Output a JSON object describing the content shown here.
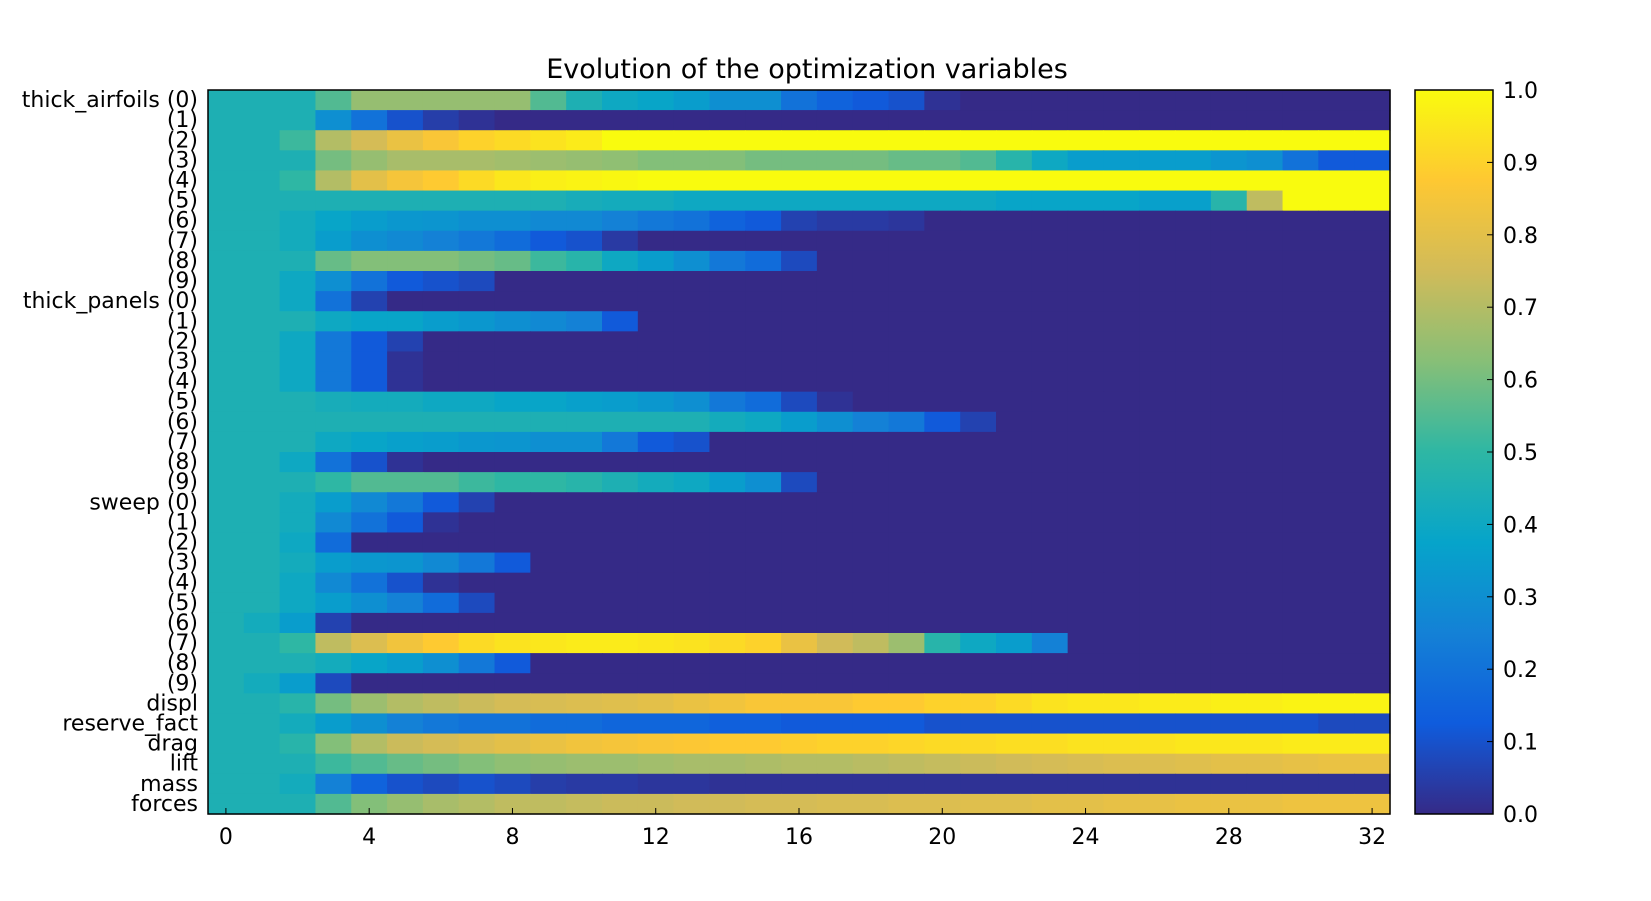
{
  "chart_data": {
    "type": "heatmap",
    "title": "Evolution of the optimization variables",
    "xlabel": "",
    "ylabel": "",
    "x_ticks": [
      "0",
      "4",
      "8",
      "12",
      "16",
      "20",
      "24",
      "28",
      "32"
    ],
    "y_labels": [
      "thick_airfoils (0)",
      "(1)",
      "(2)",
      "(3)",
      "(4)",
      "(5)",
      "(6)",
      "(7)",
      "(8)",
      "(9)",
      "thick_panels (0)",
      "(1)",
      "(2)",
      "(3)",
      "(4)",
      "(5)",
      "(6)",
      "(7)",
      "(8)",
      "(9)",
      "sweep (0)",
      "(1)",
      "(2)",
      "(3)",
      "(4)",
      "(5)",
      "(6)",
      "(7)",
      "(8)",
      "(9)",
      "displ",
      "reserve_fact",
      "drag",
      "lift",
      "mass",
      "forces"
    ],
    "colorbar_ticks": [
      "0.0",
      "0.1",
      "0.2",
      "0.3",
      "0.4",
      "0.5",
      "0.6",
      "0.7",
      "0.8",
      "0.9",
      "1.0"
    ],
    "vmin": 0.0,
    "vmax": 1.0,
    "iterations": 33,
    "colormap": [
      "#352a87",
      "#0f5cdd",
      "#1481d6",
      "#06a4ca",
      "#2eb7a4",
      "#87bf77",
      "#d1bb59",
      "#fec832",
      "#f9fb0e"
    ],
    "rows": [
      [
        0.45,
        0.45,
        0.45,
        0.55,
        0.65,
        0.65,
        0.65,
        0.65,
        0.65,
        0.55,
        0.45,
        0.4,
        0.38,
        0.35,
        0.3,
        0.3,
        0.2,
        0.15,
        0.12,
        0.1,
        0.02,
        0,
        0,
        0,
        0,
        0,
        0,
        0,
        0,
        0,
        0,
        0,
        0
      ],
      [
        0.45,
        0.45,
        0.45,
        0.3,
        0.2,
        0.1,
        0.05,
        0.02,
        0,
        0,
        0,
        0,
        0,
        0,
        0,
        0,
        0,
        0,
        0,
        0,
        0,
        0,
        0,
        0,
        0,
        0,
        0,
        0,
        0,
        0,
        0,
        0,
        0
      ],
      [
        0.45,
        0.45,
        0.52,
        0.7,
        0.76,
        0.82,
        0.86,
        0.9,
        0.92,
        0.94,
        0.96,
        1,
        1,
        1,
        1,
        1,
        1,
        1,
        1,
        1,
        1,
        1,
        1,
        1,
        1,
        1,
        1,
        1,
        1,
        1,
        1,
        1,
        1
      ],
      [
        0.45,
        0.45,
        0.45,
        0.6,
        0.65,
        0.68,
        0.68,
        0.68,
        0.67,
        0.66,
        0.65,
        0.64,
        0.62,
        0.62,
        0.62,
        0.6,
        0.6,
        0.6,
        0.6,
        0.58,
        0.58,
        0.55,
        0.48,
        0.4,
        0.35,
        0.35,
        0.35,
        0.35,
        0.32,
        0.3,
        0.2,
        0.12,
        0.12
      ],
      [
        0.45,
        0.45,
        0.5,
        0.7,
        0.8,
        0.85,
        0.88,
        0.92,
        0.95,
        0.97,
        0.98,
        0.99,
        1,
        1,
        1,
        1,
        1,
        1,
        1,
        1,
        1,
        1,
        1,
        1,
        1,
        1,
        1,
        1,
        1,
        1,
        1,
        1,
        1
      ],
      [
        0.45,
        0.45,
        0.45,
        0.45,
        0.45,
        0.45,
        0.45,
        0.45,
        0.45,
        0.45,
        0.43,
        0.42,
        0.42,
        0.4,
        0.4,
        0.4,
        0.4,
        0.4,
        0.4,
        0.4,
        0.4,
        0.4,
        0.38,
        0.38,
        0.38,
        0.38,
        0.36,
        0.36,
        0.48,
        0.72,
        1,
        1,
        1
      ],
      [
        0.45,
        0.45,
        0.42,
        0.38,
        0.35,
        0.33,
        0.32,
        0.3,
        0.3,
        0.28,
        0.28,
        0.25,
        0.22,
        0.2,
        0.15,
        0.12,
        0.06,
        0.04,
        0.04,
        0.03,
        0,
        0,
        0,
        0,
        0,
        0,
        0,
        0,
        0,
        0,
        0,
        0,
        0
      ],
      [
        0.45,
        0.45,
        0.42,
        0.35,
        0.3,
        0.28,
        0.25,
        0.22,
        0.18,
        0.12,
        0.1,
        0.04,
        0,
        0,
        0,
        0,
        0,
        0,
        0,
        0,
        0,
        0,
        0,
        0,
        0,
        0,
        0,
        0,
        0,
        0,
        0,
        0,
        0
      ],
      [
        0.45,
        0.45,
        0.45,
        0.58,
        0.62,
        0.62,
        0.62,
        0.6,
        0.58,
        0.52,
        0.48,
        0.4,
        0.35,
        0.3,
        0.22,
        0.18,
        0.08,
        0,
        0,
        0,
        0,
        0,
        0,
        0,
        0,
        0,
        0,
        0,
        0,
        0,
        0,
        0,
        0
      ],
      [
        0.45,
        0.45,
        0.4,
        0.3,
        0.2,
        0.12,
        0.1,
        0.08,
        0,
        0,
        0,
        0,
        0,
        0,
        0,
        0,
        0,
        0,
        0,
        0,
        0,
        0,
        0,
        0,
        0,
        0,
        0,
        0,
        0,
        0,
        0,
        0,
        0
      ],
      [
        0.45,
        0.45,
        0.4,
        0.2,
        0.06,
        0,
        0,
        0,
        0,
        0,
        0,
        0,
        0,
        0,
        0,
        0,
        0,
        0,
        0,
        0,
        0,
        0,
        0,
        0,
        0,
        0,
        0,
        0,
        0,
        0,
        0,
        0,
        0
      ],
      [
        0.45,
        0.45,
        0.45,
        0.4,
        0.38,
        0.38,
        0.35,
        0.33,
        0.3,
        0.28,
        0.25,
        0.12,
        0,
        0,
        0,
        0,
        0,
        0,
        0,
        0,
        0,
        0,
        0,
        0,
        0,
        0,
        0,
        0,
        0,
        0,
        0,
        0,
        0
      ],
      [
        0.45,
        0.45,
        0.4,
        0.22,
        0.12,
        0.06,
        0,
        0,
        0,
        0,
        0,
        0,
        0,
        0,
        0,
        0,
        0,
        0,
        0,
        0,
        0,
        0,
        0,
        0,
        0,
        0,
        0,
        0,
        0,
        0,
        0,
        0,
        0
      ],
      [
        0.45,
        0.45,
        0.4,
        0.22,
        0.12,
        0.02,
        0,
        0,
        0,
        0,
        0,
        0,
        0,
        0,
        0,
        0,
        0,
        0,
        0,
        0,
        0,
        0,
        0,
        0,
        0,
        0,
        0,
        0,
        0,
        0,
        0,
        0,
        0
      ],
      [
        0.45,
        0.45,
        0.4,
        0.22,
        0.12,
        0.02,
        0,
        0,
        0,
        0,
        0,
        0,
        0,
        0,
        0,
        0,
        0,
        0,
        0,
        0,
        0,
        0,
        0,
        0,
        0,
        0,
        0,
        0,
        0,
        0,
        0,
        0,
        0
      ],
      [
        0.45,
        0.45,
        0.45,
        0.43,
        0.42,
        0.42,
        0.4,
        0.4,
        0.38,
        0.38,
        0.36,
        0.35,
        0.33,
        0.3,
        0.22,
        0.18,
        0.08,
        0.02,
        0,
        0,
        0,
        0,
        0,
        0,
        0,
        0,
        0,
        0,
        0,
        0,
        0,
        0,
        0
      ],
      [
        0.45,
        0.45,
        0.45,
        0.45,
        0.45,
        0.45,
        0.45,
        0.45,
        0.45,
        0.45,
        0.45,
        0.45,
        0.45,
        0.45,
        0.42,
        0.4,
        0.35,
        0.3,
        0.25,
        0.22,
        0.12,
        0.06,
        0,
        0,
        0,
        0,
        0,
        0,
        0,
        0,
        0,
        0,
        0
      ],
      [
        0.45,
        0.45,
        0.45,
        0.4,
        0.38,
        0.36,
        0.35,
        0.33,
        0.32,
        0.3,
        0.3,
        0.22,
        0.12,
        0.1,
        0,
        0,
        0,
        0,
        0,
        0,
        0,
        0,
        0,
        0,
        0,
        0,
        0,
        0,
        0,
        0,
        0,
        0,
        0
      ],
      [
        0.45,
        0.45,
        0.4,
        0.2,
        0.1,
        0.02,
        0,
        0,
        0,
        0,
        0,
        0,
        0,
        0,
        0,
        0,
        0,
        0,
        0,
        0,
        0,
        0,
        0,
        0,
        0,
        0,
        0,
        0,
        0,
        0,
        0,
        0,
        0
      ],
      [
        0.45,
        0.45,
        0.45,
        0.5,
        0.55,
        0.55,
        0.55,
        0.52,
        0.5,
        0.5,
        0.48,
        0.45,
        0.42,
        0.4,
        0.35,
        0.3,
        0.08,
        0,
        0,
        0,
        0,
        0,
        0,
        0,
        0,
        0,
        0,
        0,
        0,
        0,
        0,
        0,
        0
      ],
      [
        0.45,
        0.45,
        0.42,
        0.35,
        0.28,
        0.22,
        0.12,
        0.06,
        0,
        0,
        0,
        0,
        0,
        0,
        0,
        0,
        0,
        0,
        0,
        0,
        0,
        0,
        0,
        0,
        0,
        0,
        0,
        0,
        0,
        0,
        0,
        0,
        0
      ],
      [
        0.45,
        0.45,
        0.42,
        0.28,
        0.2,
        0.12,
        0.02,
        0,
        0,
        0,
        0,
        0,
        0,
        0,
        0,
        0,
        0,
        0,
        0,
        0,
        0,
        0,
        0,
        0,
        0,
        0,
        0,
        0,
        0,
        0,
        0,
        0,
        0
      ],
      [
        0.45,
        0.45,
        0.4,
        0.18,
        0,
        0,
        0,
        0,
        0,
        0,
        0,
        0,
        0,
        0,
        0,
        0,
        0,
        0,
        0,
        0,
        0,
        0,
        0,
        0,
        0,
        0,
        0,
        0,
        0,
        0,
        0,
        0,
        0
      ],
      [
        0.45,
        0.45,
        0.42,
        0.35,
        0.33,
        0.32,
        0.28,
        0.22,
        0.12,
        0,
        0,
        0,
        0,
        0,
        0,
        0,
        0,
        0,
        0,
        0,
        0,
        0,
        0,
        0,
        0,
        0,
        0,
        0,
        0,
        0,
        0,
        0,
        0
      ],
      [
        0.45,
        0.45,
        0.4,
        0.28,
        0.2,
        0.1,
        0.02,
        0,
        0,
        0,
        0,
        0,
        0,
        0,
        0,
        0,
        0,
        0,
        0,
        0,
        0,
        0,
        0,
        0,
        0,
        0,
        0,
        0,
        0,
        0,
        0,
        0,
        0
      ],
      [
        0.45,
        0.45,
        0.4,
        0.35,
        0.3,
        0.25,
        0.18,
        0.08,
        0,
        0,
        0,
        0,
        0,
        0,
        0,
        0,
        0,
        0,
        0,
        0,
        0,
        0,
        0,
        0,
        0,
        0,
        0,
        0,
        0,
        0,
        0,
        0,
        0
      ],
      [
        0.45,
        0.42,
        0.35,
        0.06,
        0,
        0,
        0,
        0,
        0,
        0,
        0,
        0,
        0,
        0,
        0,
        0,
        0,
        0,
        0,
        0,
        0,
        0,
        0,
        0,
        0,
        0,
        0,
        0,
        0,
        0,
        0,
        0,
        0
      ],
      [
        0.45,
        0.45,
        0.5,
        0.72,
        0.78,
        0.84,
        0.88,
        0.92,
        0.94,
        0.95,
        0.96,
        0.96,
        0.95,
        0.94,
        0.92,
        0.9,
        0.82,
        0.75,
        0.72,
        0.66,
        0.48,
        0.4,
        0.35,
        0.25,
        0,
        0,
        0,
        0,
        0,
        0,
        0,
        0,
        0
      ],
      [
        0.45,
        0.45,
        0.45,
        0.42,
        0.38,
        0.35,
        0.3,
        0.22,
        0.12,
        0,
        0,
        0,
        0,
        0,
        0,
        0,
        0,
        0,
        0,
        0,
        0,
        0,
        0,
        0,
        0,
        0,
        0,
        0,
        0,
        0,
        0,
        0,
        0
      ],
      [
        0.45,
        0.42,
        0.35,
        0.08,
        0,
        0,
        0,
        0,
        0,
        0,
        0,
        0,
        0,
        0,
        0,
        0,
        0,
        0,
        0,
        0,
        0,
        0,
        0,
        0,
        0,
        0,
        0,
        0,
        0,
        0,
        0,
        0,
        0
      ],
      [
        0.45,
        0.45,
        0.48,
        0.6,
        0.66,
        0.7,
        0.72,
        0.74,
        0.76,
        0.77,
        0.78,
        0.79,
        0.8,
        0.82,
        0.84,
        0.86,
        0.86,
        0.86,
        0.88,
        0.88,
        0.9,
        0.9,
        0.92,
        0.94,
        0.95,
        0.95,
        0.96,
        0.96,
        0.97,
        0.97,
        0.98,
        0.98,
        0.98
      ],
      [
        0.45,
        0.45,
        0.42,
        0.35,
        0.3,
        0.25,
        0.22,
        0.2,
        0.2,
        0.18,
        0.18,
        0.16,
        0.16,
        0.16,
        0.14,
        0.14,
        0.12,
        0.12,
        0.12,
        0.12,
        0.1,
        0.1,
        0.1,
        0.1,
        0.1,
        0.1,
        0.1,
        0.1,
        0.1,
        0.1,
        0.1,
        0.08,
        0.08
      ],
      [
        0.45,
        0.45,
        0.48,
        0.62,
        0.7,
        0.74,
        0.76,
        0.78,
        0.8,
        0.82,
        0.84,
        0.85,
        0.86,
        0.87,
        0.88,
        0.88,
        0.89,
        0.9,
        0.9,
        0.91,
        0.92,
        0.92,
        0.93,
        0.93,
        0.94,
        0.94,
        0.94,
        0.95,
        0.95,
        0.95,
        0.96,
        0.96,
        0.96
      ],
      [
        0.45,
        0.45,
        0.45,
        0.52,
        0.55,
        0.58,
        0.6,
        0.62,
        0.64,
        0.65,
        0.66,
        0.66,
        0.67,
        0.68,
        0.68,
        0.69,
        0.7,
        0.7,
        0.71,
        0.72,
        0.73,
        0.74,
        0.75,
        0.76,
        0.77,
        0.78,
        0.78,
        0.79,
        0.8,
        0.8,
        0.81,
        0.82,
        0.82
      ],
      [
        0.45,
        0.45,
        0.42,
        0.25,
        0.15,
        0.1,
        0.08,
        0.1,
        0.08,
        0.05,
        0.04,
        0.04,
        0.03,
        0.03,
        0.02,
        0.02,
        0.02,
        0.02,
        0.02,
        0.02,
        0.02,
        0.02,
        0.02,
        0.02,
        0.02,
        0.02,
        0.02,
        0.02,
        0.02,
        0.02,
        0.02,
        0.02,
        0.02
      ],
      [
        0.45,
        0.45,
        0.45,
        0.55,
        0.62,
        0.65,
        0.68,
        0.7,
        0.72,
        0.72,
        0.73,
        0.74,
        0.74,
        0.75,
        0.75,
        0.76,
        0.76,
        0.77,
        0.77,
        0.78,
        0.78,
        0.79,
        0.79,
        0.8,
        0.8,
        0.81,
        0.81,
        0.82,
        0.82,
        0.82,
        0.83,
        0.83,
        0.83
      ]
    ]
  }
}
